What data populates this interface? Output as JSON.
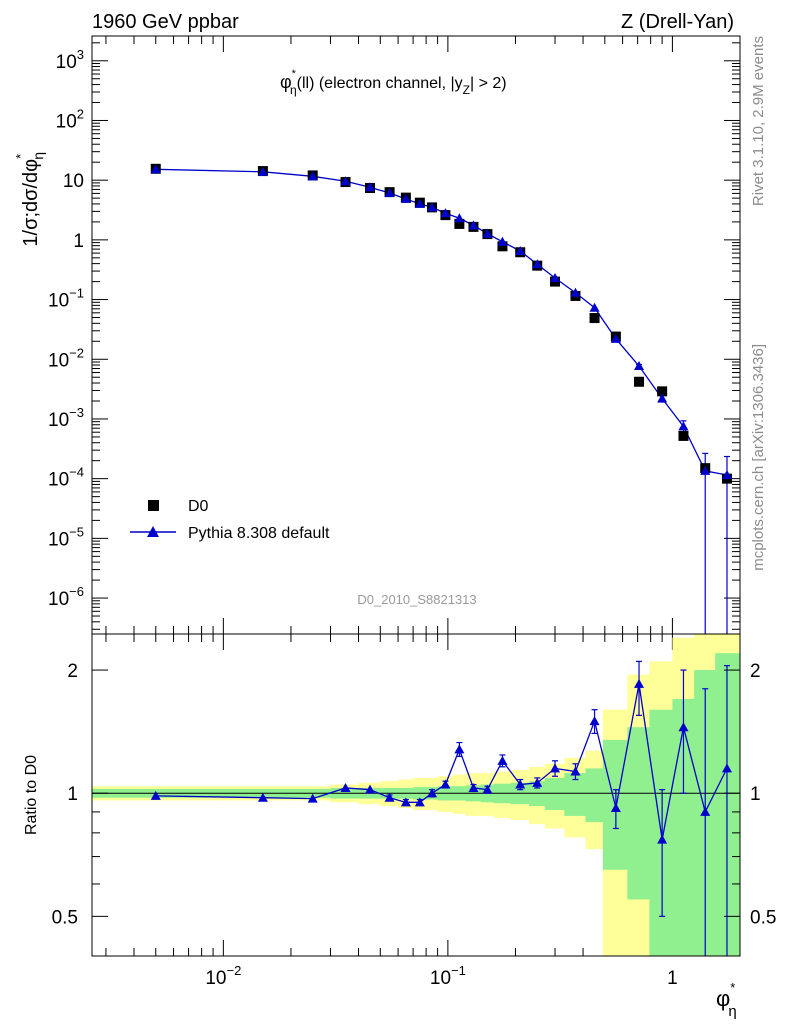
{
  "header": {
    "left": "1960 GeV ppbar",
    "right": "Z (Drell-Yan)"
  },
  "side": {
    "rivet": "Rivet 3.1.10,  2.9M events",
    "mcplots": "mcplots.cern.ch [arXiv:1306.3436]"
  },
  "watermark": "D0_2010_S8821313",
  "colors": {
    "data": "#000000",
    "mc": "#0000cc",
    "band_inner": "#90f090",
    "band_outer": "#ffff99"
  },
  "chart_data": [
    {
      "type": "scatter",
      "panel": "main",
      "title_parts": {
        "phi": "φ",
        "phi_sup": "*",
        "phi_sub": "η",
        "rest": "(ll) (electron channel, |y",
        "z_sub": "Z",
        "end": "| > 2)"
      },
      "ylabel_parts": {
        "prefix": "1/σ;dσ/dφ",
        "sup": "*",
        "sub": "η"
      },
      "xscale": "log",
      "yscale": "log",
      "xlim": [
        0.0026,
        2.0
      ],
      "ylim": [
        2.5e-07,
        2600
      ],
      "yticks": [
        {
          "v": 1000.0,
          "label": "10",
          "exp": "3"
        },
        {
          "v": 100.0,
          "label": "10",
          "exp": "2"
        },
        {
          "v": 10,
          "label": "10",
          "exp": ""
        },
        {
          "v": 1,
          "label": "1",
          "exp": ""
        },
        {
          "v": 0.1,
          "label": "10",
          "exp": "−1"
        },
        {
          "v": 0.01,
          "label": "10",
          "exp": "−2"
        },
        {
          "v": 0.001,
          "label": "10",
          "exp": "−3"
        },
        {
          "v": 0.0001,
          "label": "10",
          "exp": "−4"
        },
        {
          "v": 1e-05,
          "label": "10",
          "exp": "−5"
        },
        {
          "v": 1e-06,
          "label": "10",
          "exp": "−6"
        }
      ],
      "legend": [
        {
          "name": "D0",
          "marker": "square"
        },
        {
          "name": "Pythia 8.308 default",
          "marker": "triangle"
        }
      ],
      "legend_position": "bottom-left",
      "x": [
        0.005,
        0.015,
        0.025,
        0.035,
        0.045,
        0.055,
        0.065,
        0.075,
        0.085,
        0.0975,
        0.1125,
        0.13,
        0.15,
        0.175,
        0.21,
        0.25,
        0.3,
        0.37,
        0.45,
        0.56,
        0.71,
        0.9,
        1.12,
        1.4,
        1.75
      ],
      "series": [
        {
          "name": "D0",
          "values": [
            15.5,
            14.2,
            12.0,
            9.3,
            7.4,
            6.3,
            5.1,
            4.2,
            3.5,
            2.6,
            1.85,
            1.65,
            1.25,
            0.78,
            0.62,
            0.37,
            0.2,
            0.115,
            0.049,
            0.024,
            0.0042,
            0.0029,
            0.00052,
            0.00015,
            0.0001
          ]
        },
        {
          "name": "Pythia 8.308 default",
          "values": [
            15.2,
            13.8,
            11.6,
            9.6,
            7.6,
            6.1,
            4.85,
            4.0,
            3.5,
            2.8,
            2.3,
            1.75,
            1.27,
            0.93,
            0.65,
            0.39,
            0.23,
            0.13,
            0.073,
            0.022,
            0.0077,
            0.0022,
            0.00075,
            0.000135,
            0.000115
          ],
          "err_lo": [
            0.15,
            0.15,
            0.12,
            0.1,
            0.08,
            0.06,
            0.05,
            0.04,
            0.04,
            0.03,
            0.03,
            0.02,
            0.015,
            0.012,
            0.008,
            0.006,
            0.004,
            0.003,
            0.0015,
            0.0008,
            0.00045,
            0.00028,
            0.00018,
            0.0001349,
            0.0001149
          ],
          "err_hi": [
            0.15,
            0.15,
            0.12,
            0.1,
            0.08,
            0.06,
            0.05,
            0.04,
            0.04,
            0.03,
            0.03,
            0.02,
            0.015,
            0.012,
            0.008,
            0.006,
            0.004,
            0.003,
            0.0015,
            0.0008,
            0.00045,
            0.00028,
            0.00018,
            0.00013,
            0.00012
          ]
        }
      ]
    },
    {
      "type": "line",
      "panel": "ratio",
      "ylabel": "Ratio to D0",
      "xlabel_parts": {
        "phi": "φ",
        "sup": "*",
        "sub": "η"
      },
      "xscale": "log",
      "yscale": "log",
      "xlim": [
        0.0026,
        2.0
      ],
      "ylim": [
        0.4,
        2.45
      ],
      "yticks": [
        {
          "v": 0.5,
          "label": "0.5"
        },
        {
          "v": 1,
          "label": "1"
        },
        {
          "v": 2,
          "label": "2"
        }
      ],
      "xticks": [
        {
          "v": 0.01,
          "label": "10",
          "exp": "−2"
        },
        {
          "v": 0.1,
          "label": "10",
          "exp": "−1"
        },
        {
          "v": 1,
          "label": "1",
          "exp": ""
        }
      ],
      "bins": [
        0.0026,
        0.01,
        0.02,
        0.03,
        0.04,
        0.05,
        0.06,
        0.07,
        0.08,
        0.09,
        0.105,
        0.12,
        0.14,
        0.16,
        0.19,
        0.23,
        0.27,
        0.33,
        0.41,
        0.49,
        0.63,
        0.79,
        1.0,
        1.25,
        1.55,
        2.0
      ],
      "band_inner": [
        0.025,
        0.025,
        0.025,
        0.03,
        0.03,
        0.03,
        0.03,
        0.035,
        0.035,
        0.04,
        0.04,
        0.045,
        0.05,
        0.055,
        0.06,
        0.07,
        0.09,
        0.12,
        0.15,
        0.35,
        0.45,
        0.6,
        0.7,
        1.0,
        1.2
      ],
      "band_outer": [
        0.04,
        0.04,
        0.04,
        0.05,
        0.06,
        0.07,
        0.08,
        0.09,
        0.09,
        0.1,
        0.11,
        0.12,
        0.12,
        0.13,
        0.14,
        0.16,
        0.18,
        0.22,
        0.27,
        0.6,
        0.95,
        1.1,
        1.4,
        2.0,
        2.2
      ],
      "x": [
        0.005,
        0.015,
        0.025,
        0.035,
        0.045,
        0.055,
        0.065,
        0.075,
        0.085,
        0.0975,
        0.1125,
        0.13,
        0.15,
        0.175,
        0.21,
        0.25,
        0.3,
        0.37,
        0.45,
        0.56,
        0.71,
        0.9,
        1.12,
        1.4,
        1.75
      ],
      "series": [
        {
          "name": "Pythia 8.308 default",
          "values": [
            0.985,
            0.975,
            0.97,
            1.03,
            1.02,
            0.975,
            0.95,
            0.95,
            1.0,
            1.05,
            1.28,
            1.03,
            1.02,
            1.2,
            1.05,
            1.06,
            1.15,
            1.13,
            1.5,
            0.92,
            1.85,
            0.77,
            1.45,
            0.9,
            1.15
          ],
          "err_lo": [
            0.01,
            0.01,
            0.01,
            0.01,
            0.01,
            0.015,
            0.015,
            0.015,
            0.02,
            0.02,
            0.05,
            0.02,
            0.02,
            0.04,
            0.03,
            0.03,
            0.05,
            0.05,
            0.1,
            0.1,
            0.3,
            0.27,
            0.45,
            0.6,
            0.8
          ],
          "err_hi": [
            0.01,
            0.01,
            0.01,
            0.01,
            0.01,
            0.015,
            0.015,
            0.015,
            0.02,
            0.02,
            0.05,
            0.02,
            0.02,
            0.04,
            0.03,
            0.03,
            0.05,
            0.05,
            0.1,
            0.1,
            0.25,
            0.25,
            0.55,
            0.9,
            0.9
          ]
        }
      ]
    }
  ]
}
